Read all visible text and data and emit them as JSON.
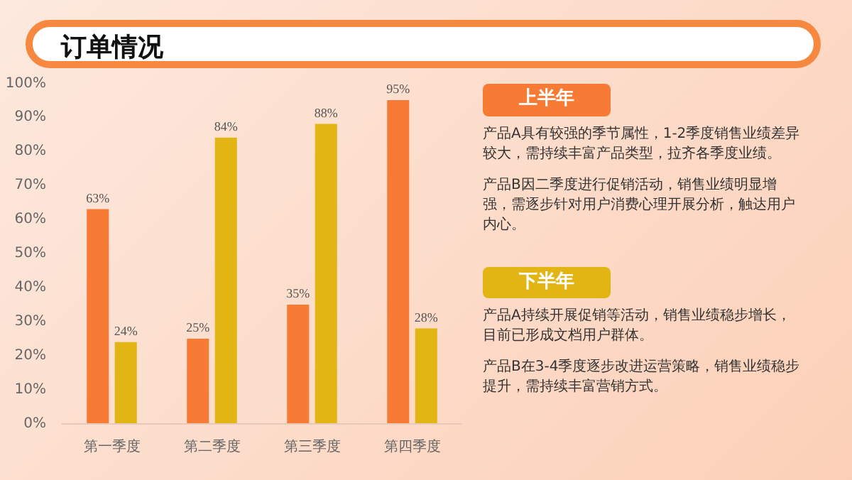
{
  "chart_data": {
    "type": "bar",
    "title": "订单情况",
    "categories": [
      "第一季度",
      "第二季度",
      "第三季度",
      "第四季度"
    ],
    "series": [
      {
        "color": "#f77a35",
        "values": [
          63,
          25,
          35,
          95
        ],
        "value_labels": [
          "63%",
          "25%",
          "35%",
          "95%"
        ]
      },
      {
        "color": "#e2b515",
        "values": [
          24,
          84,
          88,
          28
        ],
        "value_labels": [
          "24%",
          "84%",
          "88%",
          "28%"
        ]
      }
    ],
    "ylim": [
      0,
      100
    ],
    "yticks": [
      {
        "value": 0,
        "label": "0%"
      },
      {
        "value": 10,
        "label": "10%"
      },
      {
        "value": 20,
        "label": "20%"
      },
      {
        "value": 30,
        "label": "30%"
      },
      {
        "value": 40,
        "label": "40%"
      },
      {
        "value": 50,
        "label": "50%"
      },
      {
        "value": 60,
        "label": "60%"
      },
      {
        "value": 70,
        "label": "70%"
      },
      {
        "value": 80,
        "label": "80%"
      },
      {
        "value": 90,
        "label": "90%"
      },
      {
        "value": 100,
        "label": "100%"
      }
    ],
    "grid": false,
    "annotations": [
      "上半年",
      "产品A具有较强的季节属性，1-2季度销售业绩差异较大，需持续丰富产品类型，拉齐各季度业绩。",
      "产品B因二季度进行促销活动，销售业绩明显增强，需逐步针对用户消费心理开展分析，触达用户内心。",
      "下半年",
      "产品A持续开展促销等活动，销售业绩稳步增长，目前已形成文档用户群体。",
      "产品B在3-4季度逐步改进运营策略，销售业绩稳步提升，需持续丰富营销方式。"
    ]
  }
}
